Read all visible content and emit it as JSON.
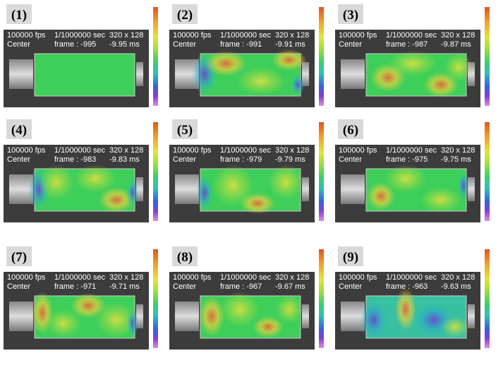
{
  "panels": [
    {
      "label": "(1)",
      "fps": "100000 fps",
      "shutter": "1/1000000 sec",
      "resolution": "320 x 128",
      "position": "Center",
      "frame": "frame : -995",
      "time": "-9.95 ms"
    },
    {
      "label": "(2)",
      "fps": "100000 fps",
      "shutter": "1/1000000 sec",
      "resolution": "320 x 128",
      "position": "Center",
      "frame": "frame : -991",
      "time": "-9.91 ms"
    },
    {
      "label": "(3)",
      "fps": "100000 fps",
      "shutter": "1/1000000 sec",
      "resolution": "320 x 128",
      "position": "Center",
      "frame": "frame : -987",
      "time": "-9.87 ms"
    },
    {
      "label": "(4)",
      "fps": "100000 fps",
      "shutter": "1/1000000 sec",
      "resolution": "320 x 128",
      "position": "Center",
      "frame": "frame : -983",
      "time": "-9.83 ms"
    },
    {
      "label": "(5)",
      "fps": "100000 fps",
      "shutter": "1/1000000 sec",
      "resolution": "320 x 128",
      "position": "Center",
      "frame": "frame : -979",
      "time": "-9.79 ms"
    },
    {
      "label": "(6)",
      "fps": "100000 fps",
      "shutter": "1/1000000 sec",
      "resolution": "320 x 128",
      "position": "Center",
      "frame": "frame : -975",
      "time": "-9.75 ms"
    },
    {
      "label": "(7)",
      "fps": "100000 fps",
      "shutter": "1/1000000 sec",
      "resolution": "320 x 128",
      "position": "Center",
      "frame": "frame : -971",
      "time": "-9.71 ms"
    },
    {
      "label": "(8)",
      "fps": "100000 fps",
      "shutter": "1/1000000 sec",
      "resolution": "320 x 128",
      "position": "Center",
      "frame": "frame : -967",
      "time": "-9.67 ms"
    },
    {
      "label": "(9)",
      "fps": "100000 fps",
      "shutter": "1/1000000 sec",
      "resolution": "320 x 128",
      "position": "Center",
      "frame": "frame : -963",
      "time": "-9.63 ms"
    }
  ]
}
